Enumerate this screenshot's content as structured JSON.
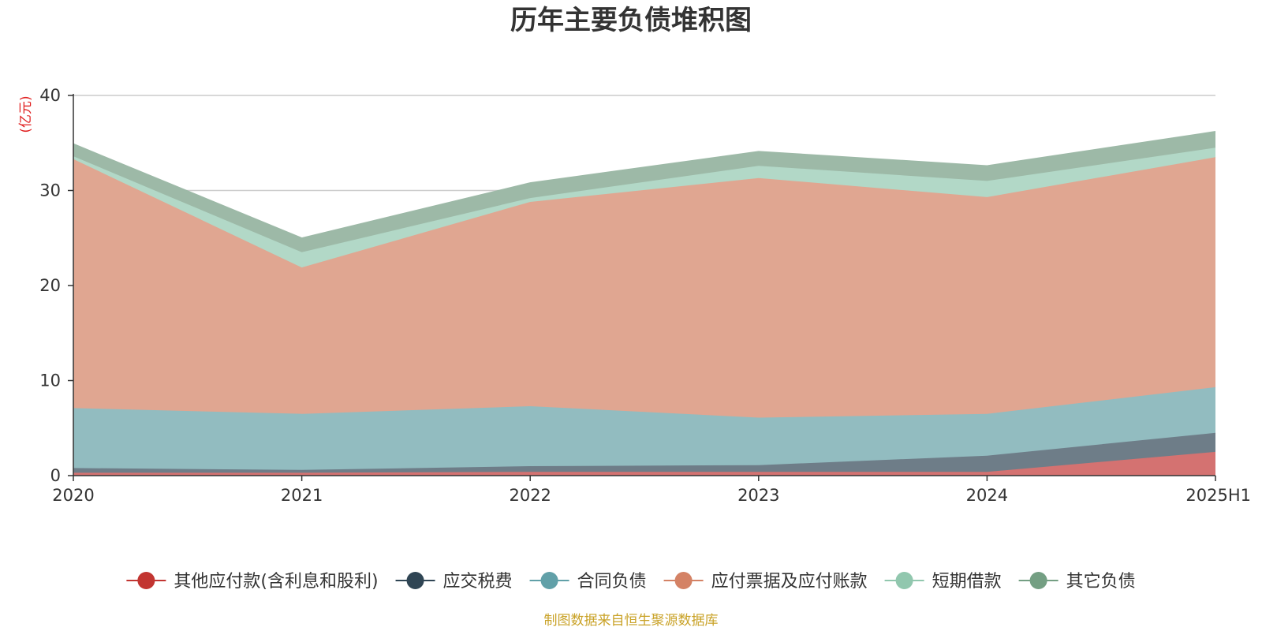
{
  "chart_data": {
    "type": "area",
    "stacked": true,
    "title": "历年主要负债堆积图",
    "unit_label": "(亿元)",
    "source_note": "制图数据来自恒生聚源数据库",
    "x": [
      "2020",
      "2021",
      "2022",
      "2023",
      "2024",
      "2025H1"
    ],
    "ylim": [
      0,
      40
    ],
    "yticks": [
      0,
      10,
      20,
      30,
      40
    ],
    "grid": true,
    "legend_position": "bottom",
    "series": [
      {
        "name": "其他应付款(含利息和股利)",
        "color": "#c23531",
        "fill": "#d47271",
        "values": [
          0.3,
          0.3,
          0.4,
          0.4,
          0.4,
          2.5
        ]
      },
      {
        "name": "应交税费",
        "color": "#2f4554",
        "fill": "#6e7d88",
        "values": [
          0.5,
          0.3,
          0.6,
          0.7,
          1.7,
          2.0
        ]
      },
      {
        "name": "合同负债",
        "color": "#61a0a8",
        "fill": "#92bcc0",
        "values": [
          6.3,
          5.9,
          6.3,
          5.0,
          4.4,
          4.8
        ]
      },
      {
        "name": "应付票据及应付账款",
        "color": "#d48265",
        "fill": "#e0a691",
        "values": [
          26.2,
          15.4,
          21.5,
          25.2,
          22.8,
          24.2
        ]
      },
      {
        "name": "短期借款",
        "color": "#91c7ae",
        "fill": "#b2d8c7",
        "values": [
          0.3,
          1.6,
          0.4,
          1.3,
          1.7,
          1.0
        ]
      },
      {
        "name": "其它负债",
        "color": "#749f83",
        "fill": "#9db9a7",
        "values": [
          1.3,
          1.5,
          1.6,
          1.5,
          1.6,
          1.7
        ]
      }
    ]
  }
}
